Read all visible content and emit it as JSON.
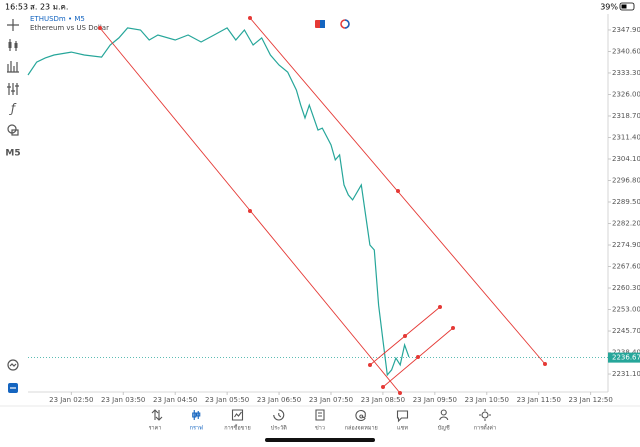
{
  "status_bar": {
    "time": "16:53",
    "date": "ส. 23 ม.ค.",
    "battery": "39%"
  },
  "toolbar": {
    "timeframe": "M5"
  },
  "chart_data": {
    "type": "line",
    "title": "ETHUSDm • M5",
    "subtitle": "Ethereum vs US Dollar",
    "x": [
      0,
      2,
      4,
      6,
      10,
      13,
      17,
      19,
      21,
      23,
      26,
      28,
      30,
      34,
      37,
      40,
      43,
      46,
      48,
      50,
      52,
      54,
      56,
      58,
      60,
      62,
      63,
      64,
      65,
      67,
      68,
      70,
      71,
      72,
      73,
      74,
      75,
      77,
      78,
      79,
      80,
      81,
      82,
      83,
      84,
      85,
      86,
      87,
      88
    ],
    "values": [
      2332.6,
      2337.0,
      2338.4,
      2339.4,
      2340.4,
      2339.4,
      2338.7,
      2342.8,
      2345.2,
      2348.6,
      2347.9,
      2344.5,
      2346.2,
      2344.5,
      2346.2,
      2343.8,
      2346.2,
      2348.6,
      2344.5,
      2347.9,
      2342.8,
      2345.2,
      2339.4,
      2336.0,
      2333.6,
      2327.5,
      2322.4,
      2318.0,
      2322.4,
      2313.9,
      2314.6,
      2308.9,
      2303.8,
      2305.5,
      2295.3,
      2291.9,
      2290.2,
      2295.3,
      2285.1,
      2274.9,
      2273.2,
      2254.5,
      2242.7,
      2230.8,
      2232.5,
      2236.5,
      2234.2,
      2241.0,
      2236.9
    ],
    "color": "#26a69a",
    "last_price": 2236.67,
    "xlim": [
      0,
      134
    ],
    "xticks": [
      {
        "value": 10,
        "label": "23 Jan 02:50"
      },
      {
        "value": 22,
        "label": "23 Jan 03:50"
      },
      {
        "value": 34,
        "label": "23 Jan 04:50"
      },
      {
        "value": 46,
        "label": "23 Jan 05:50"
      },
      {
        "value": 58,
        "label": "23 Jan 06:50"
      },
      {
        "value": 70,
        "label": "23 Jan 07:50"
      },
      {
        "value": 82,
        "label": "23 Jan 08:50"
      },
      {
        "value": 94,
        "label": "23 Jan 09:50"
      },
      {
        "value": 106,
        "label": "23 Jan 10:50"
      },
      {
        "value": 118,
        "label": "23 Jan 11:50"
      },
      {
        "value": 130,
        "label": "23 Jan 12:50"
      }
    ],
    "ylim": [
      2225.0,
      2352.3
    ],
    "yticks": [
      {
        "value": 2347.9,
        "label": "2347.90"
      },
      {
        "value": 2340.6,
        "label": "2340.60"
      },
      {
        "value": 2333.3,
        "label": "2333.30"
      },
      {
        "value": 2326.0,
        "label": "2326.00"
      },
      {
        "value": 2318.7,
        "label": "2318.70"
      },
      {
        "value": 2311.4,
        "label": "2311.40"
      },
      {
        "value": 2304.1,
        "label": "2304.10"
      },
      {
        "value": 2296.8,
        "label": "2296.80"
      },
      {
        "value": 2289.5,
        "label": "2289.50"
      },
      {
        "value": 2282.2,
        "label": "2282.20"
      },
      {
        "value": 2274.9,
        "label": "2274.90"
      },
      {
        "value": 2267.6,
        "label": "2267.60"
      },
      {
        "value": 2260.3,
        "label": "2260.30"
      },
      {
        "value": 2253.0,
        "label": "2253.00"
      },
      {
        "value": 2245.7,
        "label": "2245.70"
      },
      {
        "value": 2238.4,
        "label": "2238.40"
      },
      {
        "value": 2231.1,
        "label": "2231.10"
      }
    ]
  },
  "nav": {
    "items": [
      "ราคา",
      "กราฟ",
      "การซื้อขาย",
      "ประวัติ",
      "ข่าว",
      "กล่องจดหมาย",
      "แชท",
      "บัญชี",
      "การตั้งค่า"
    ],
    "active": 1
  }
}
